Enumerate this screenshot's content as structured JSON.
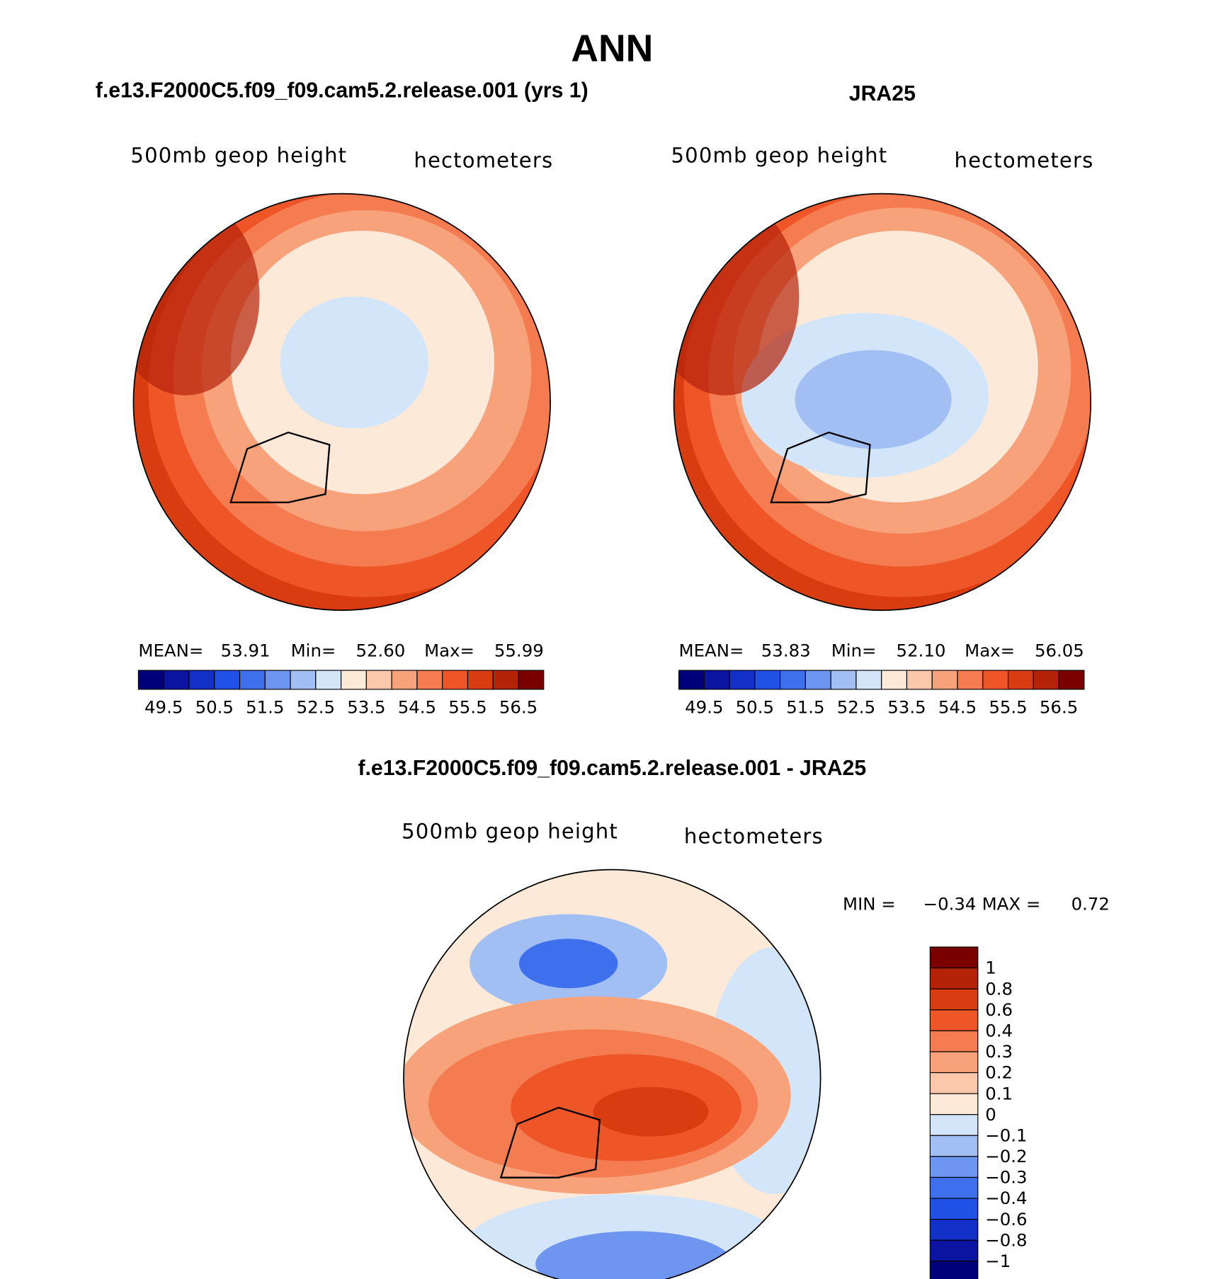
{
  "title": "ANN",
  "panels": [
    {
      "title": "f.e13.F2000C5.f09_f09.cam5.2.release.001 (yrs 1)",
      "variable": "500mb geop height",
      "units": "hectometers",
      "stats": [
        {
          "label": "MEAN=",
          "value": "53.91"
        },
        {
          "label": "Min=",
          "value": "52.60"
        },
        {
          "label": "Max=",
          "value": "55.99"
        }
      ]
    },
    {
      "title": "JRA25",
      "variable": "500mb geop height",
      "units": "hectometers",
      "stats": [
        {
          "label": "MEAN=",
          "value": "53.83"
        },
        {
          "label": "Min=",
          "value": "52.10"
        },
        {
          "label": "Max=",
          "value": "56.05"
        }
      ]
    }
  ],
  "colorbar": {
    "labels": [
      "49.5",
      "50.5",
      "51.5",
      "52.5",
      "53.5",
      "54.5",
      "55.5",
      "56.5"
    ],
    "colors": [
      "#00007a",
      "#0a14a0",
      "#1230c8",
      "#2050e6",
      "#3e70ee",
      "#6e96f0",
      "#a2bff4",
      "#d2e5f9",
      "#fde9d8",
      "#fcc8ac",
      "#f8a27c",
      "#f47c50",
      "#ee5628",
      "#d83c10",
      "#b42208",
      "#7a0000"
    ]
  },
  "difference": {
    "title": "f.e13.F2000C5.f09_f09.cam5.2.release.001 - JRA25",
    "variable": "500mb geop height",
    "units": "hectometers",
    "stats": [
      {
        "label": "MIN =",
        "value": "−0.34"
      },
      {
        "label": "MAX =",
        "value": "0.72"
      }
    ],
    "colorbar": {
      "labels": [
        "1",
        "0.8",
        "0.6",
        "0.4",
        "0.3",
        "0.2",
        "0.1",
        "0",
        "−0.1",
        "−0.2",
        "−0.3",
        "−0.4",
        "−0.6",
        "−0.8",
        "−1"
      ],
      "colors": [
        "#7a0000",
        "#b42208",
        "#d83c10",
        "#ee5628",
        "#f47c50",
        "#f8a27c",
        "#fcc8ac",
        "#fde9d8",
        "#d2e5f9",
        "#a2bff4",
        "#6e96f0",
        "#3e70ee",
        "#2050e6",
        "#1230c8",
        "#0a14a0",
        "#00007a"
      ]
    }
  }
}
